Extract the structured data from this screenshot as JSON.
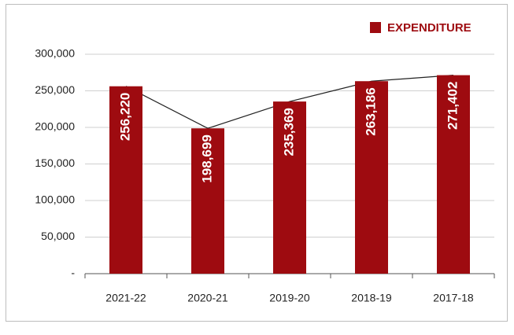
{
  "chart_data": {
    "type": "bar",
    "categories": [
      "2021-22",
      "2020-21",
      "2019-20",
      "2018-19",
      "2017-18"
    ],
    "series": [
      {
        "name": "EXPENDITURE",
        "color": "#9e0b10",
        "values": [
          256220,
          198699,
          235369,
          263186,
          271402
        ],
        "value_labels": [
          "256,220",
          "198,699",
          "235,369",
          "263,186",
          "271,402"
        ]
      }
    ],
    "ylim": [
      0,
      300000
    ],
    "yticks": [
      {
        "value": 0,
        "label": "-"
      },
      {
        "value": 50000,
        "label": "50,000"
      },
      {
        "value": 100000,
        "label": "100,000"
      },
      {
        "value": 150000,
        "label": "150,000"
      },
      {
        "value": 200000,
        "label": "200,000"
      },
      {
        "value": 250000,
        "label": "250,000"
      },
      {
        "value": 300000,
        "label": "300,000"
      }
    ],
    "grid": true,
    "legend": "top-right"
  }
}
